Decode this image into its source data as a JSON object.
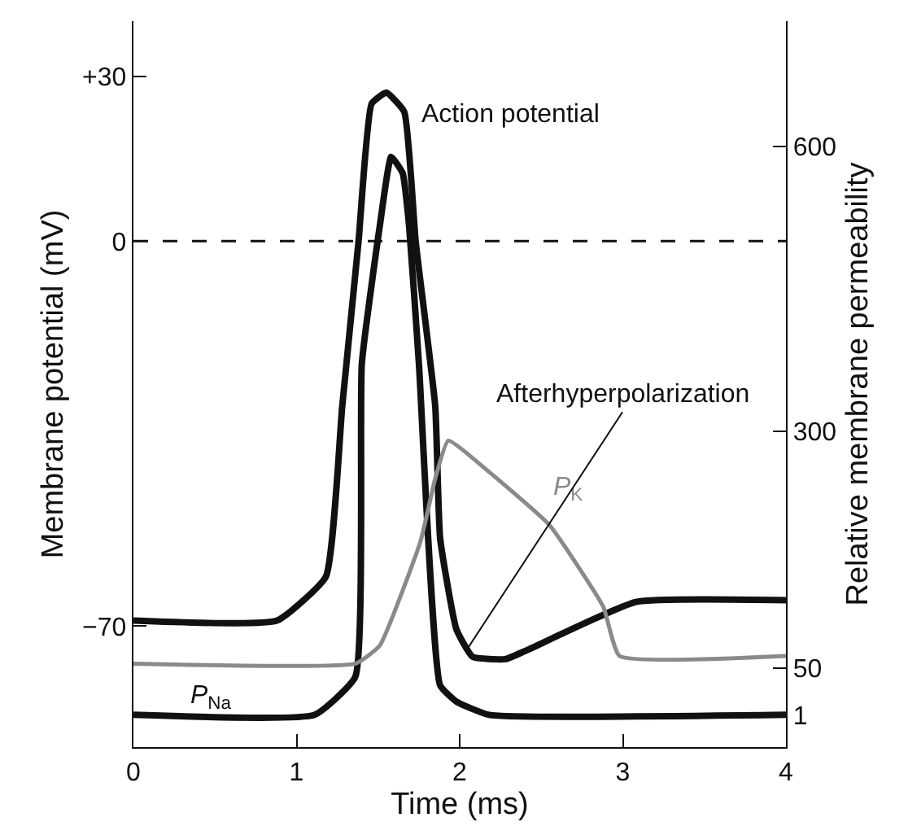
{
  "chart_data": {
    "type": "line",
    "xlabel": "Time (ms)",
    "ylabel": "Membrane potential (mV)",
    "y2label": "Relative membrane permeability",
    "xlim": [
      0,
      4
    ],
    "xticks": [
      0,
      1,
      2,
      3,
      4
    ],
    "ylim": [
      -92,
      40
    ],
    "yticks": [
      {
        "value": 30,
        "label": "+30"
      },
      0,
      {
        "value": -70,
        "label": "−70"
      }
    ],
    "y2lim": [
      -33,
      732
    ],
    "y2ticks": [
      1,
      50,
      300,
      600
    ],
    "series": [
      {
        "name": "Action potential",
        "color": "#111111",
        "x": [
          0,
          0.88,
          1.18,
          1.28,
          1.38,
          1.46,
          1.55,
          1.66,
          1.73,
          1.85,
          1.88,
          1.98,
          2.08,
          2.28,
          2.41,
          3.08,
          4.0
        ],
        "values": [
          -69,
          -69,
          -61,
          -30,
          0,
          25,
          27,
          23.5,
          0,
          -30,
          -54,
          -70.6,
          -75.6,
          -76,
          -74.4,
          -65.6,
          -65.3
        ]
      },
      {
        "name": "P$_{Na}$",
        "color": "#111111",
        "axis": "y2",
        "x": [
          0,
          1.11,
          1.36,
          1.4,
          1.51,
          1.58,
          1.65,
          1.69,
          1.75,
          1.88,
          1.98,
          2.18,
          4.0
        ],
        "values": [
          1,
          1,
          41,
          371,
          516,
          589,
          572,
          516,
          371,
          32,
          15,
          1,
          1
        ]
      },
      {
        "name": "P$_{K}$",
        "color": "#8a8a8a",
        "axis": "y2",
        "x": [
          0,
          1.36,
          1.51,
          1.76,
          1.85,
          1.93,
          2.18,
          2.55,
          2.88,
          2.98,
          4.0
        ],
        "values": [
          55,
          55,
          74,
          184,
          250,
          290,
          257,
          201,
          115,
          63,
          63
        ]
      }
    ],
    "ref_lines": [
      {
        "axis": "y",
        "value": 0,
        "line_style": "dashed",
        "color": "#111111"
      }
    ],
    "annotations": [
      {
        "text": "Afterhyperpolarization",
        "x": 2.05,
        "y": -74
      }
    ],
    "legend": false,
    "marker": "none",
    "line_style": "solid"
  }
}
